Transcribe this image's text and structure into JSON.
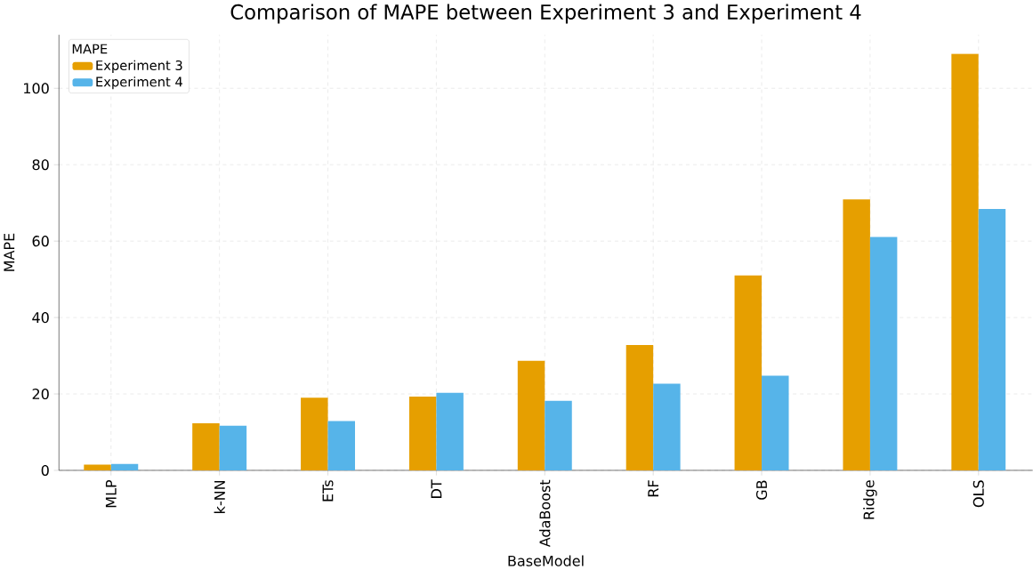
{
  "chart_data": {
    "type": "bar",
    "title": "Comparison of MAPE between Experiment 3 and Experiment 4",
    "xlabel": "BaseModel",
    "ylabel": "MAPE",
    "legend_title": "MAPE",
    "categories": [
      "MLP",
      "k-NN",
      "ETs",
      "DT",
      "AdaBoost",
      "RF",
      "GB",
      "Ridge",
      "OLS"
    ],
    "series": [
      {
        "name": "Experiment 3",
        "color": "#e69f00",
        "values": [
          1.5,
          12.3,
          19.0,
          19.3,
          28.7,
          32.8,
          51.0,
          70.9,
          109.0
        ]
      },
      {
        "name": "Experiment 4",
        "color": "#56b4e9",
        "values": [
          1.7,
          11.7,
          12.9,
          20.3,
          18.2,
          22.7,
          24.8,
          61.1,
          68.4
        ]
      }
    ],
    "ylim": [
      0,
      114
    ],
    "yticks": [
      0,
      20,
      40,
      60,
      80,
      100
    ],
    "grid": true,
    "legend": "top left"
  }
}
